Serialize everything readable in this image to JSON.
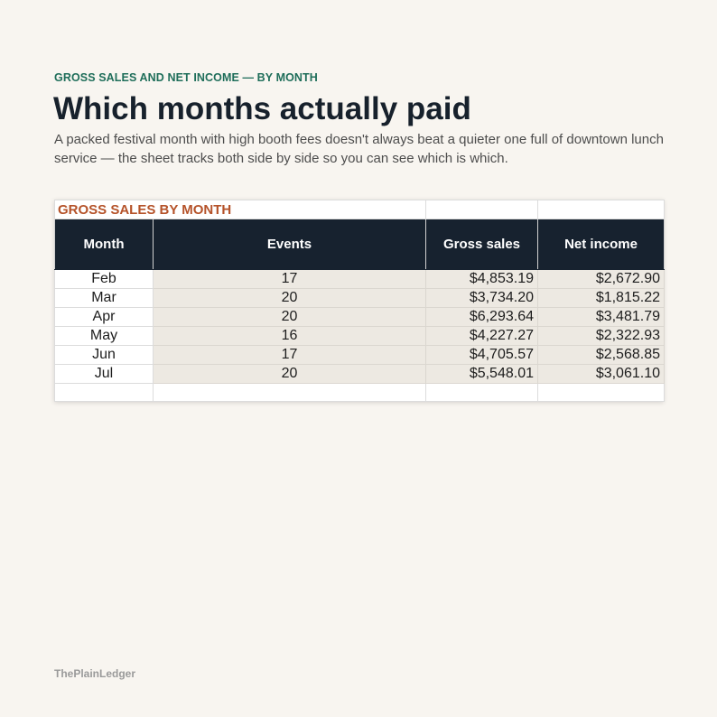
{
  "header": {
    "eyebrow": "GROSS SALES AND NET INCOME — BY MONTH",
    "title": "Which months actually paid",
    "subtitle": "A packed festival month with high booth fees doesn't always beat a quieter one full of downtown lunch service — the sheet tracks both side by side so you can see which is which."
  },
  "sheet": {
    "label": "GROSS SALES BY MONTH",
    "columns": [
      "Month",
      "Events",
      "Gross sales",
      "Net income"
    ],
    "rows": [
      [
        "Feb",
        "17",
        "$4,853.19",
        "$2,672.90"
      ],
      [
        "Mar",
        "20",
        "$3,734.20",
        "$1,815.22"
      ],
      [
        "Apr",
        "20",
        "$6,293.64",
        "$3,481.79"
      ],
      [
        "May",
        "16",
        "$4,227.27",
        "$2,322.93"
      ],
      [
        "Jun",
        "17",
        "$4,705.57",
        "$2,568.85"
      ],
      [
        "Jul",
        "20",
        "$5,548.01",
        "$3,061.10"
      ]
    ]
  },
  "footer": {
    "brand": "ThePlainLedger"
  },
  "colors": {
    "eyebrow": "#1f6e5a",
    "accent": "#b5532a",
    "header_fill": "#17222f",
    "data_fill": "#ede9e2"
  }
}
